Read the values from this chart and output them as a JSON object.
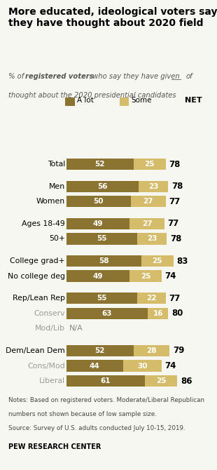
{
  "title": "More educated, ideological voters say\nthey have thought about 2020 field",
  "categories": [
    "Total",
    "Men",
    "Women",
    "Ages 18-49",
    "50+",
    "College grad+",
    "No college deg",
    "Rep/Lean Rep",
    "Conserv",
    "Mod/Lib",
    "Dem/Lean Dem",
    "Cons/Mod",
    "Liberal"
  ],
  "a_lot": [
    52,
    56,
    50,
    49,
    55,
    58,
    49,
    55,
    63,
    null,
    52,
    44,
    61
  ],
  "some": [
    25,
    23,
    27,
    27,
    23,
    25,
    25,
    22,
    16,
    null,
    28,
    30,
    25
  ],
  "net": [
    78,
    78,
    77,
    77,
    78,
    83,
    74,
    77,
    80,
    null,
    79,
    74,
    86
  ],
  "color_alot": "#8B7332",
  "color_some": "#D4BC6A",
  "background_color": "#f7f7f2",
  "indented": [
    "Conserv",
    "Mod/Lib",
    "Cons/Mod",
    "Liberal"
  ],
  "group_starts": [
    0,
    1,
    3,
    5,
    7,
    10
  ],
  "notes_line1": "Notes: Based on registered voters. Moderate/Liberal Republican",
  "notes_line2": "numbers not shown because of low sample size.",
  "notes_line3": "Source: Survey of U.S. adults conducted July 10-15, 2019.",
  "source_bold": "PEW RESEARCH CENTER"
}
